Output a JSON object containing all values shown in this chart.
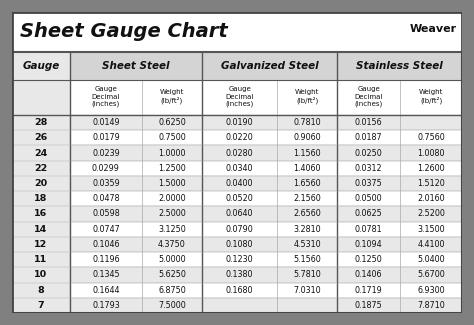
{
  "title": "Sheet Gauge Chart",
  "bg_outer": "#808080",
  "bg_white": "#ffffff",
  "bg_light_gray": "#e8e8e8",
  "bg_header_gray": "#d4d4d4",
  "border_dark": "#404040",
  "text_dark": "#111111",
  "gauges": [
    28,
    26,
    24,
    22,
    20,
    18,
    16,
    14,
    12,
    11,
    10,
    8,
    7
  ],
  "sheet_steel_dec": [
    "0.0149",
    "0.0179",
    "0.0239",
    "0.0299",
    "0.0359",
    "0.0478",
    "0.0598",
    "0.0747",
    "0.1046",
    "0.1196",
    "0.1345",
    "0.1644",
    "0.1793"
  ],
  "sheet_steel_wt": [
    "0.6250",
    "0.7500",
    "1.0000",
    "1.2500",
    "1.5000",
    "2.0000",
    "2.5000",
    "3.1250",
    "4.3750",
    "5.0000",
    "5.6250",
    "6.8750",
    "7.5000"
  ],
  "galv_dec": [
    "0.0190",
    "0.0220",
    "0.0280",
    "0.0340",
    "0.0400",
    "0.0520",
    "0.0640",
    "0.0790",
    "0.1080",
    "0.1230",
    "0.1380",
    "0.1680",
    ""
  ],
  "galv_wt": [
    "0.7810",
    "0.9060",
    "1.1560",
    "1.4060",
    "1.6560",
    "2.1560",
    "2.6560",
    "3.2810",
    "4.5310",
    "5.1560",
    "5.7810",
    "7.0310",
    ""
  ],
  "stain_dec": [
    "0.0156",
    "0.0187",
    "0.0250",
    "0.0312",
    "0.0375",
    "0.0500",
    "0.0625",
    "0.0781",
    "0.1094",
    "0.1250",
    "0.1406",
    "0.1719",
    "0.1875"
  ],
  "stain_wt": [
    "",
    "0.7560",
    "1.0080",
    "1.2600",
    "1.5120",
    "2.0160",
    "2.5200",
    "3.1500",
    "4.4100",
    "5.0400",
    "5.6700",
    "6.9300",
    "7.8710"
  ],
  "col_section_headers": [
    "Sheet Steel",
    "Galvanized Steel",
    "Stainless Steel"
  ],
  "sub_header_dec": "Gauge\nDecimal\n(inches)",
  "sub_header_wt": "Weight\n(lb/ft²)",
  "gauge_label": "Gauge"
}
